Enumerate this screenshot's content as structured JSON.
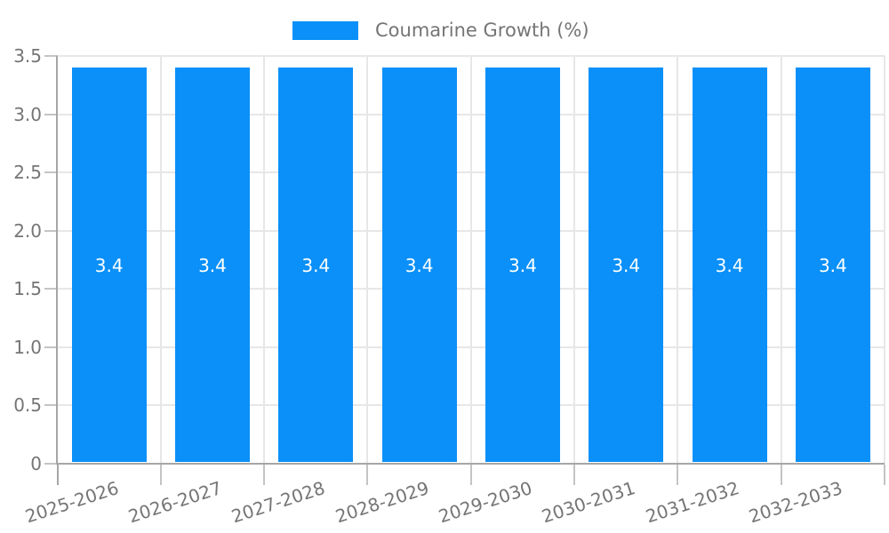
{
  "chart_data": {
    "type": "bar",
    "title": "",
    "legend": {
      "label": "Coumarine Growth (%)",
      "position": "top-center"
    },
    "categories": [
      "2025-2026",
      "2026-2027",
      "2027-2028",
      "2028-2029",
      "2029-2030",
      "2030-2031",
      "2031-2032",
      "2032-2033"
    ],
    "series": [
      {
        "name": "Coumarine Growth (%)",
        "values": [
          3.4,
          3.4,
          3.4,
          3.4,
          3.4,
          3.4,
          3.4,
          3.4
        ]
      }
    ],
    "value_labels": [
      "3.4",
      "3.4",
      "3.4",
      "3.4",
      "3.4",
      "3.4",
      "3.4",
      "3.4"
    ],
    "xlabel": "",
    "ylabel": "",
    "ylim": [
      0,
      3.5
    ],
    "ytick_step": 0.5,
    "yticks": [
      0,
      0.5,
      1.0,
      1.5,
      2.0,
      2.5,
      3.0,
      3.5
    ],
    "ytick_labels": [
      "0",
      "0.5",
      "1.0",
      "1.5",
      "2.0",
      "2.5",
      "3.0",
      "3.5"
    ],
    "grid": {
      "horizontal": true,
      "vertical": true
    },
    "x_label_rotation_deg": -18,
    "colors": {
      "bar": "#0a90f8",
      "grid": "#e7e7e7",
      "axis": "#a6a6a6",
      "tick": "#c4c4c4",
      "text": "#757575",
      "value_label": "#ffffff",
      "background": "#ffffff"
    }
  }
}
